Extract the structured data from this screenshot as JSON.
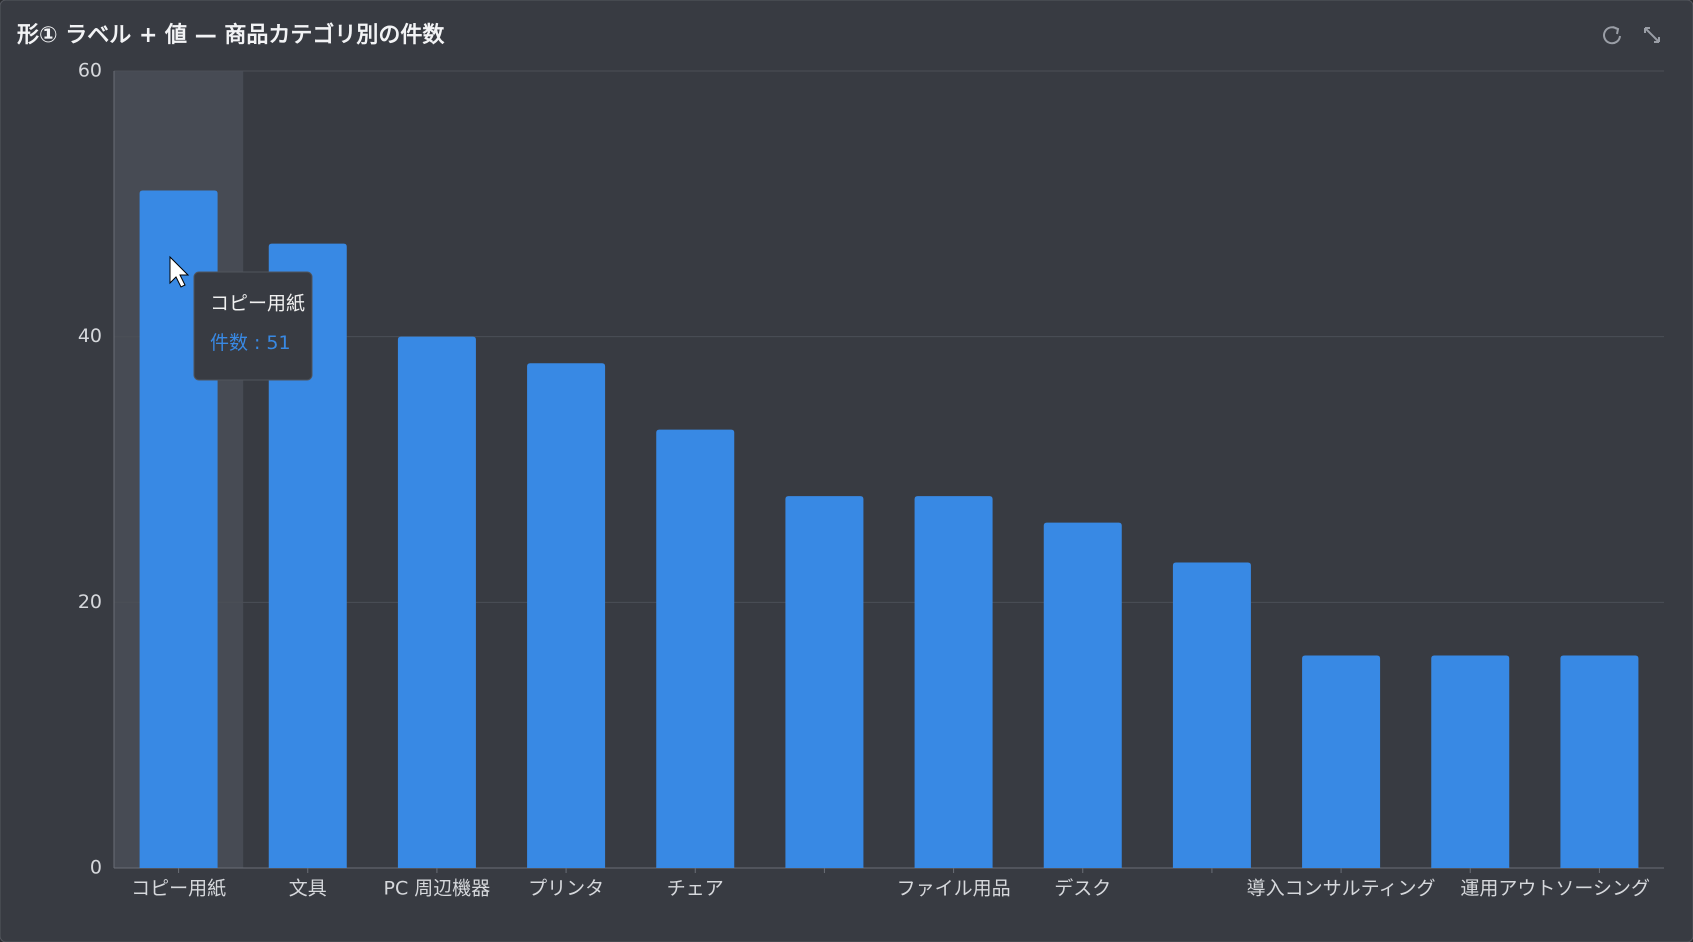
{
  "chart_data": {
    "type": "bar",
    "title": "形① ラベル + 値 — 商品カテゴリ別の件数",
    "categories": [
      "コピー用紙",
      "文具",
      "PC 周辺機器",
      "プリンタ",
      "チェア",
      null,
      "ファイル用品",
      "デスク",
      null,
      "導入コンサルティング",
      null,
      "運用アウトソーシング"
    ],
    "series": [
      {
        "name": "件数",
        "color": "#3889e4",
        "values": [
          51,
          47,
          40,
          38,
          33,
          28,
          28,
          26,
          23,
          16,
          16,
          16
        ]
      }
    ],
    "ylim": [
      0,
      60
    ],
    "yticks": [
      0,
      20,
      40,
      60
    ],
    "grid": true,
    "tooltip": {
      "index": 0,
      "separator": ":"
    }
  }
}
